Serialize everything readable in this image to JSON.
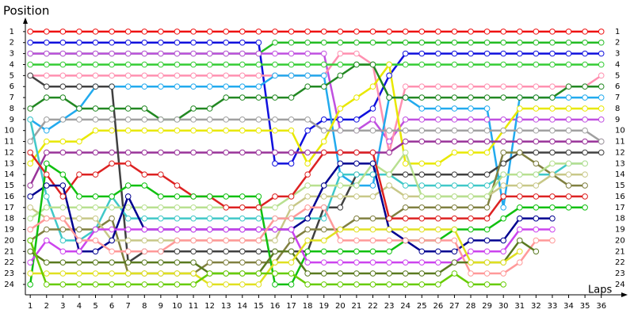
{
  "chart_data": {
    "type": "line",
    "title": "Position",
    "x_label": "Laps",
    "x": [
      1,
      2,
      3,
      4,
      5,
      6,
      7,
      8,
      9,
      10,
      11,
      12,
      13,
      14,
      15,
      16,
      17,
      18,
      19,
      20,
      21,
      22,
      23,
      24,
      25,
      26,
      27,
      28,
      29,
      30,
      31,
      32,
      33,
      34,
      35,
      36
    ],
    "xlim": [
      0.7,
      36.5
    ],
    "xticks": [
      1,
      2,
      3,
      4,
      5,
      6,
      7,
      8,
      9,
      10,
      11,
      12,
      13,
      14,
      15,
      16,
      17,
      18,
      19,
      20,
      21,
      22,
      23,
      24,
      25,
      26,
      27,
      28,
      29,
      30,
      31,
      32,
      33,
      34,
      35,
      36
    ],
    "ylim": [
      24.8,
      0
    ],
    "yticks": [
      1,
      2,
      3,
      4,
      5,
      6,
      7,
      8,
      9,
      10,
      11,
      12,
      13,
      14,
      15,
      16,
      17,
      18,
      19,
      20,
      21,
      22,
      23,
      24
    ],
    "grid": false,
    "series": [
      {
        "color": "#ee1111",
        "values": [
          1,
          1,
          1,
          1,
          1,
          1,
          1,
          1,
          1,
          1,
          1,
          1,
          1,
          1,
          1,
          1,
          1,
          1,
          1,
          1,
          1,
          1,
          1,
          1,
          1,
          1,
          1,
          1,
          1,
          1,
          1,
          1,
          1,
          1,
          1,
          1
        ]
      },
      {
        "color": "#22bb22",
        "values": [
          3,
          3,
          3,
          3,
          3,
          3,
          3,
          3,
          3,
          3,
          3,
          3,
          3,
          3,
          3,
          2,
          2,
          2,
          2,
          2,
          2,
          2,
          2,
          2,
          2,
          2,
          2,
          2,
          2,
          2,
          2,
          2,
          2,
          2,
          2,
          2
        ]
      },
      {
        "color": "#1010dd",
        "values": [
          2,
          2,
          2,
          2,
          2,
          2,
          2,
          2,
          2,
          2,
          2,
          2,
          2,
          2,
          2,
          13,
          13,
          10,
          9,
          9,
          9,
          8,
          5,
          3,
          3,
          3,
          3,
          3,
          3,
          3,
          3,
          3,
          3,
          3,
          3,
          3
        ]
      },
      {
        "color": "#c050e0",
        "values": [
          3,
          3,
          3,
          3,
          3,
          3,
          3,
          3,
          3,
          3,
          3,
          3,
          3,
          3,
          3,
          3,
          3,
          3,
          3,
          10,
          10,
          9,
          11,
          9,
          9,
          9,
          9,
          9,
          9,
          9,
          9,
          9,
          9,
          9,
          9,
          9
        ]
      },
      {
        "color": "#ff90b0",
        "values": [
          5,
          5,
          5,
          5,
          5,
          5,
          5,
          5,
          5,
          5,
          5,
          5,
          5,
          5,
          5,
          5,
          5,
          5,
          5,
          3,
          3,
          4,
          12,
          6,
          6,
          6,
          6,
          6,
          6,
          6,
          6,
          6,
          6,
          6,
          6,
          5
        ]
      },
      {
        "color": "#33cc33",
        "values": [
          4,
          4,
          4,
          4,
          4,
          4,
          4,
          4,
          4,
          4,
          4,
          4,
          4,
          4,
          4,
          4,
          4,
          4,
          4,
          4,
          4,
          4,
          4,
          4,
          4,
          4,
          4,
          4,
          4,
          4,
          4,
          4,
          4,
          4,
          4,
          4
        ]
      },
      {
        "color": "#22aaee",
        "values": [
          9,
          10,
          9,
          8,
          6,
          6,
          6,
          6,
          6,
          6,
          6,
          6,
          6,
          6,
          6,
          5,
          5,
          5,
          5,
          14,
          15,
          15,
          7,
          7,
          8,
          8,
          8,
          8,
          8,
          17,
          7,
          7,
          7,
          7,
          7,
          7
        ]
      },
      {
        "color": "#e8e800",
        "values": [
          13,
          11,
          11,
          11,
          10,
          10,
          10,
          10,
          10,
          10,
          10,
          10,
          10,
          10,
          10,
          10,
          10,
          13,
          11,
          8,
          7,
          6,
          4,
          13,
          13,
          13,
          12,
          12,
          12,
          10,
          8,
          8,
          8,
          8,
          8,
          8
        ]
      },
      {
        "color": "#228822",
        "values": [
          8,
          7,
          7,
          8,
          8,
          8,
          8,
          8,
          9,
          9,
          8,
          8,
          7,
          7,
          7,
          7,
          7,
          6,
          6,
          5,
          4,
          4,
          7,
          7,
          7,
          7,
          7,
          7,
          7,
          7,
          7,
          7,
          7,
          6,
          6,
          6
        ]
      },
      {
        "color": "#993399",
        "values": [
          15,
          12,
          12,
          12,
          12,
          12,
          12,
          12,
          12,
          12,
          12,
          12,
          12,
          12,
          12,
          12,
          12,
          12,
          12,
          12,
          12,
          12,
          12,
          11,
          11,
          11,
          11,
          11,
          11,
          11,
          11,
          11,
          11,
          11,
          11,
          11
        ]
      },
      {
        "color": "#a0a0a0",
        "values": [
          11,
          9,
          9,
          9,
          9,
          9,
          9,
          9,
          9,
          9,
          9,
          9,
          9,
          9,
          9,
          9,
          9,
          9,
          10,
          10,
          10,
          10,
          10,
          10,
          10,
          10,
          10,
          10,
          10,
          10,
          10,
          10,
          10,
          10,
          10,
          11
        ]
      },
      {
        "color": "#404040",
        "values": [
          5,
          6,
          6,
          6,
          6,
          6,
          22,
          21,
          21,
          21,
          21,
          21,
          21,
          21,
          21,
          21,
          21,
          21,
          17,
          17,
          14,
          14,
          14,
          14,
          14,
          14,
          14,
          14,
          14,
          13,
          12,
          12,
          12,
          12,
          12,
          12
        ]
      },
      {
        "color": "#40c8c8",
        "values": [
          9,
          16,
          20,
          20,
          19,
          16,
          18,
          18,
          18,
          18,
          18,
          18,
          18,
          18,
          18,
          18,
          18,
          18,
          18,
          14,
          14,
          14,
          14,
          15,
          15,
          15,
          15,
          15,
          15,
          14,
          14,
          14,
          14,
          13,
          13,
          null
        ]
      },
      {
        "color": "#808040",
        "values": [
          20,
          19,
          19,
          19,
          19,
          18,
          23,
          23,
          23,
          23,
          23,
          22,
          22,
          22,
          22,
          22,
          20,
          19,
          19,
          19,
          18,
          18,
          18,
          17,
          17,
          17,
          17,
          17,
          17,
          12,
          12,
          13,
          14,
          15,
          15,
          null
        ]
      },
      {
        "color": "#c8c888",
        "values": [
          17,
          18,
          18,
          18,
          18,
          20,
          20,
          20,
          20,
          20,
          20,
          20,
          20,
          20,
          20,
          20,
          17,
          16,
          16,
          16,
          16,
          16,
          15,
          16,
          16,
          16,
          16,
          16,
          16,
          15,
          15,
          15,
          14,
          14,
          14,
          null
        ]
      },
      {
        "color": "#b8e090",
        "values": [
          18,
          17,
          17,
          17,
          17,
          17,
          17,
          17,
          17,
          17,
          17,
          17,
          17,
          17,
          17,
          17,
          16,
          15,
          15,
          15,
          15,
          13,
          14,
          12,
          16,
          16,
          16,
          16,
          16,
          14,
          14,
          14,
          13,
          13,
          13,
          null
        ]
      },
      {
        "color": "#dd2222",
        "values": [
          12,
          14,
          16,
          14,
          14,
          13,
          13,
          14,
          14,
          15,
          16,
          16,
          17,
          17,
          17,
          16,
          16,
          14,
          12,
          12,
          12,
          12,
          18,
          18,
          18,
          18,
          18,
          18,
          18,
          16,
          16,
          16,
          16,
          16,
          16,
          null
        ]
      },
      {
        "color": "#000090",
        "values": [
          16,
          15,
          15,
          21,
          21,
          20,
          16,
          19,
          19,
          19,
          19,
          19,
          19,
          19,
          19,
          19,
          19,
          18,
          15,
          13,
          13,
          13,
          19,
          20,
          21,
          21,
          21,
          20,
          20,
          20,
          18,
          18,
          18,
          null,
          null,
          null
        ]
      },
      {
        "color": "#10c010",
        "values": [
          24,
          13,
          14,
          16,
          16,
          16,
          15,
          15,
          16,
          16,
          16,
          16,
          16,
          16,
          16,
          24,
          24,
          21,
          21,
          21,
          21,
          21,
          21,
          20,
          20,
          20,
          19,
          19,
          19,
          18,
          17,
          17,
          17,
          17,
          17,
          null
        ]
      },
      {
        "color": "#cc44ee",
        "values": [
          22,
          20,
          21,
          21,
          19,
          19,
          19,
          19,
          19,
          19,
          19,
          19,
          19,
          19,
          19,
          19,
          19,
          22,
          22,
          22,
          22,
          22,
          22,
          22,
          22,
          22,
          22,
          21,
          21,
          21,
          19,
          19,
          19,
          null,
          null,
          null
        ]
      },
      {
        "color": "#ff9999",
        "values": [
          19,
          18,
          18,
          20,
          20,
          21,
          21,
          21,
          21,
          20,
          20,
          20,
          20,
          20,
          20,
          18,
          18,
          17,
          17,
          20,
          20,
          20,
          20,
          20,
          20,
          20,
          20,
          23,
          23,
          23,
          22,
          20,
          20,
          null,
          null,
          null
        ]
      },
      {
        "color": "#5a7a20",
        "values": [
          21,
          22,
          22,
          22,
          22,
          22,
          22,
          22,
          22,
          22,
          22,
          23,
          23,
          23,
          23,
          21,
          21,
          23,
          23,
          23,
          23,
          23,
          23,
          23,
          23,
          23,
          22,
          22,
          22,
          22,
          20,
          21,
          null,
          null,
          null,
          null
        ]
      },
      {
        "color": "#e0e020",
        "values": [
          23,
          23,
          23,
          23,
          23,
          23,
          23,
          23,
          23,
          23,
          23,
          24,
          24,
          24,
          24,
          22,
          22,
          20,
          20,
          19,
          19,
          19,
          19,
          19,
          19,
          19,
          19,
          22,
          22,
          22,
          21,
          null,
          null,
          null,
          null,
          null
        ]
      },
      {
        "color": "#66cc00",
        "values": [
          20,
          24,
          24,
          24,
          24,
          24,
          24,
          24,
          24,
          24,
          24,
          23,
          23,
          23,
          23,
          23,
          23,
          24,
          24,
          24,
          24,
          24,
          24,
          24,
          24,
          24,
          23,
          24,
          24,
          24,
          null,
          null,
          null,
          null,
          null,
          null
        ]
      }
    ]
  }
}
